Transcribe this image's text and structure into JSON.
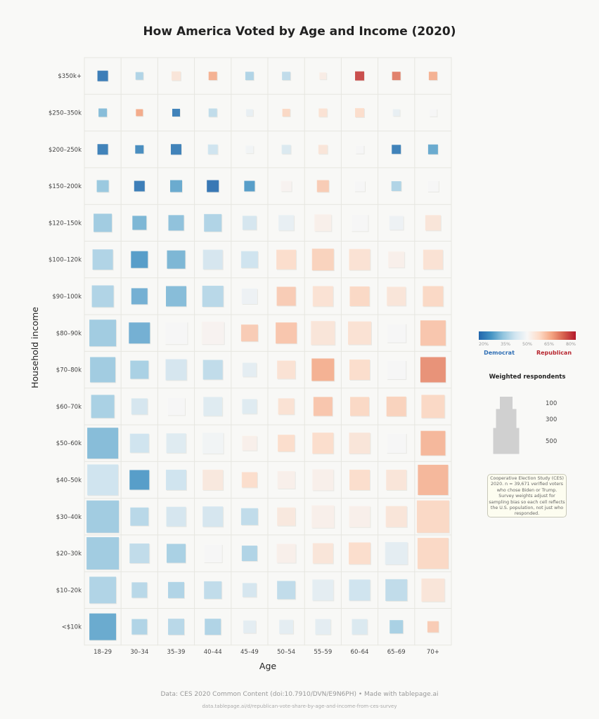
{
  "chart_data": {
    "type": "heatmap",
    "title": "How America Voted by Age and Income (2020)",
    "xlabel": "Age",
    "ylabel": "Household income",
    "x_categories": [
      "18–29",
      "30–34",
      "35–39",
      "40–44",
      "45–49",
      "50–54",
      "55–59",
      "60–64",
      "65–69",
      "70+"
    ],
    "y_categories": [
      "$350k+",
      "$250–350k",
      "$200–250k",
      "$150–200k",
      "$120–150k",
      "$100–120k",
      "$90–100k",
      "$80–90k",
      "$70–80k",
      "$60–70k",
      "$50–60k",
      "$40–50k",
      "$30–40k",
      "$20–30k",
      "$10–20k",
      "<$10k"
    ],
    "color_metric": "Republican vote share (%)",
    "color_scale": {
      "min": 20,
      "max": 80,
      "ticks": [
        "20%",
        "35%",
        "50%",
        "65%",
        "80%"
      ],
      "low_label": "Democrat",
      "high_label": "Republican",
      "low_color": "#2166ac",
      "high_color": "#b2182b"
    },
    "size_legend": {
      "title": "Weighted respondents",
      "entries": [
        100,
        300,
        500
      ]
    },
    "rep_share": [
      [
        22,
        38,
        55,
        64,
        38,
        40,
        53,
        76,
        70,
        64
      ],
      [
        33,
        65,
        23,
        40,
        47,
        58,
        56,
        57,
        47,
        50
      ],
      [
        23,
        25,
        23,
        42,
        49,
        44,
        55,
        50,
        23,
        30
      ],
      [
        35,
        22,
        30,
        21,
        28,
        51,
        60,
        50,
        38,
        50
      ],
      [
        36,
        32,
        34,
        38,
        43,
        47,
        52,
        50,
        48,
        55
      ],
      [
        38,
        28,
        32,
        43,
        42,
        57,
        59,
        56,
        52,
        56
      ],
      [
        38,
        31,
        33,
        39,
        48,
        60,
        56,
        58,
        55,
        58
      ],
      [
        36,
        31,
        50,
        51,
        60,
        61,
        55,
        56,
        50,
        61
      ],
      [
        36,
        37,
        43,
        40,
        46,
        56,
        64,
        57,
        50,
        68
      ],
      [
        37,
        43,
        50,
        45,
        45,
        56,
        61,
        58,
        59,
        58
      ],
      [
        33,
        42,
        45,
        49,
        52,
        57,
        57,
        55,
        50,
        63
      ],
      [
        42,
        28,
        42,
        54,
        57,
        52,
        52,
        57,
        55,
        63
      ],
      [
        36,
        39,
        43,
        43,
        40,
        54,
        52,
        52,
        55,
        58
      ],
      [
        36,
        40,
        37,
        50,
        38,
        52,
        55,
        57,
        46,
        58
      ],
      [
        38,
        39,
        38,
        40,
        43,
        40,
        46,
        42,
        40,
        55
      ],
      [
        30,
        38,
        39,
        38,
        46,
        46,
        46,
        44,
        37,
        60
      ]
    ],
    "weighted_respondents": [
      [
        82,
        44,
        61,
        52,
        52,
        52,
        36,
        61,
        52,
        52
      ],
      [
        52,
        36,
        44,
        52,
        36,
        44,
        52,
        61,
        36,
        44
      ],
      [
        82,
        52,
        82,
        71,
        44,
        61,
        61,
        52,
        61,
        71
      ],
      [
        105,
        82,
        105,
        105,
        82,
        82,
        105,
        82,
        71,
        93
      ],
      [
        245,
        145,
        176,
        227,
        145,
        176,
        209,
        209,
        145,
        176
      ],
      [
        305,
        209,
        245,
        285,
        209,
        285,
        349,
        327,
        192,
        285
      ],
      [
        349,
        192,
        305,
        327,
        176,
        265,
        305,
        285,
        265,
        305
      ],
      [
        524,
        327,
        372,
        372,
        209,
        327,
        420,
        395,
        265,
        470
      ],
      [
        470,
        245,
        327,
        285,
        145,
        245,
        372,
        305,
        265,
        470
      ],
      [
        395,
        192,
        227,
        265,
        160,
        192,
        265,
        265,
        285,
        395
      ],
      [
        703,
        265,
        285,
        327,
        160,
        209,
        327,
        327,
        285,
        445
      ],
      [
        703,
        285,
        305,
        305,
        176,
        227,
        327,
        305,
        305,
        673
      ],
      [
        768,
        245,
        285,
        305,
        209,
        245,
        372,
        327,
        327,
        768
      ],
      [
        768,
        285,
        265,
        245,
        176,
        265,
        305,
        349,
        372,
        703
      ],
      [
        524,
        176,
        192,
        227,
        145,
        245,
        327,
        327,
        349,
        395
      ],
      [
        524,
        176,
        192,
        192,
        118,
        145,
        176,
        176,
        131,
        93
      ]
    ]
  },
  "note": "Cooperative Election Study (CES) 2020. n = 39,671 verified voters who chose Biden or Trump. Survey weights adjust for sampling bias so each cell reflects the U.S. population, not just who responded.",
  "footer": {
    "source": "Data: CES 2020 Common Content (doi:10.7910/DVN/E9N6PH)  •  Made with tablepage.ai",
    "url": "data.tablepage.ai/d/republican-vote-share-by-age-and-income-from-ces-survey"
  }
}
